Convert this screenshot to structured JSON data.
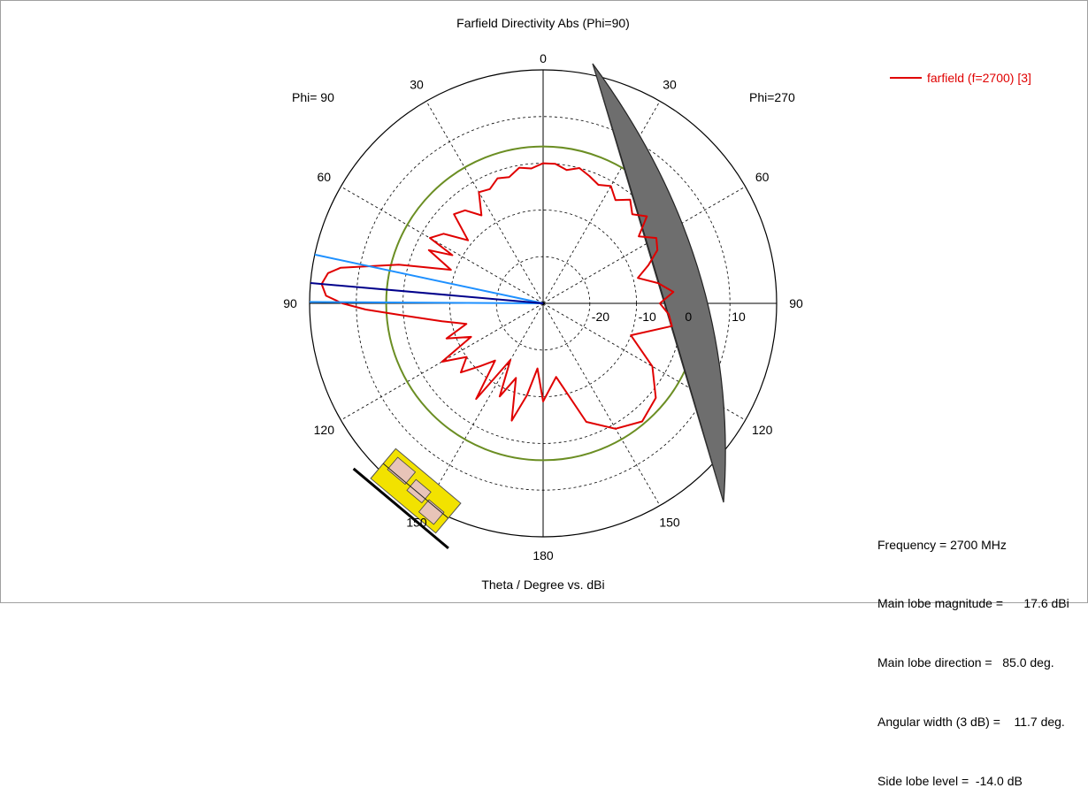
{
  "chart_data": {
    "type": "polar",
    "title": "Farfield Directivity Abs (Phi=90)",
    "xlabel": "Theta / Degree vs. dBi",
    "phi_left_label": "Phi= 90",
    "phi_right_label": "Phi=270",
    "radial_range_dbi": [
      -30,
      20
    ],
    "radial_ticks": [
      "-20",
      "-10",
      "0",
      "10"
    ],
    "angle_labels": {
      "top": "0",
      "right": [
        "30",
        "60",
        "90",
        "120",
        "150"
      ],
      "bottom": "180",
      "left": [
        "30",
        "60",
        "90",
        "120",
        "150"
      ]
    },
    "grid": true,
    "legend_position": "top-right",
    "series": [
      {
        "name": "farfield (f=2700) [3]",
        "color": "#e00000",
        "points_theta_deg_dbi": [
          [
            -180,
            -9
          ],
          [
            -170,
            -14
          ],
          [
            -160,
            -3
          ],
          [
            -150,
            1
          ],
          [
            -140,
            3
          ],
          [
            -130,
            1.5
          ],
          [
            -120,
            -3
          ],
          [
            -110,
            -10
          ],
          [
            -100,
            -2
          ],
          [
            -95,
            -3
          ],
          [
            -90,
            -5
          ],
          [
            -85,
            -2
          ],
          [
            -80,
            -5
          ],
          [
            -75,
            -9
          ],
          [
            -70,
            -6
          ],
          [
            -65,
            -3
          ],
          [
            -60,
            -2
          ],
          [
            -55,
            -5
          ],
          [
            -50,
            -1
          ],
          [
            -45,
            -3
          ],
          [
            -40,
            -1
          ],
          [
            -35,
            -3
          ],
          [
            -30,
            -1
          ],
          [
            -25,
            -2
          ],
          [
            -20,
            -1
          ],
          [
            -15,
            0
          ],
          [
            -10,
            -1
          ],
          [
            -5,
            0
          ],
          [
            0,
            0
          ],
          [
            5,
            -1
          ],
          [
            10,
            -0.5
          ],
          [
            15,
            -2
          ],
          [
            20,
            -1.5
          ],
          [
            25,
            -3
          ],
          [
            30,
            -2.5
          ],
          [
            35,
            -7
          ],
          [
            40,
            -4
          ],
          [
            45,
            -3
          ],
          [
            50,
            -9
          ],
          [
            55,
            -4
          ],
          [
            60,
            -2
          ],
          [
            62,
            -8
          ],
          [
            65,
            -3
          ],
          [
            70,
            -9
          ],
          [
            75,
            2
          ],
          [
            80,
            14
          ],
          [
            82,
            16.5
          ],
          [
            85,
            17.6
          ],
          [
            88,
            16.5
          ],
          [
            90,
            13
          ],
          [
            92,
            8
          ],
          [
            95,
            0
          ],
          [
            100,
            -8
          ],
          [
            105,
            -13
          ],
          [
            110,
            -8
          ],
          [
            115,
            -13
          ],
          [
            120,
            -5
          ],
          [
            125,
            -10
          ],
          [
            130,
            -7
          ],
          [
            135,
            -11
          ],
          [
            140,
            -14
          ],
          [
            145,
            -5
          ],
          [
            150,
            -16
          ],
          [
            155,
            -8
          ],
          [
            160,
            -13
          ],
          [
            165,
            -4
          ],
          [
            170,
            -10
          ],
          [
            175,
            -16
          ],
          [
            180,
            -9
          ]
        ]
      }
    ],
    "main_lobe_direction_deg": 85.0,
    "angular_width_deg": 11.7,
    "reference_circle_dbi": 3.6
  },
  "info": {
    "frequency": "Frequency = 2700 MHz",
    "main_lobe_magnitude": "Main lobe magnitude =      17.6 dBi",
    "main_lobe_direction": "Main lobe direction =   85.0 deg.",
    "angular_width": "Angular width (3 dB) =    11.7 deg.",
    "side_lobe_level": "Side lobe level =  -14.0 dB"
  },
  "colors": {
    "series": "#e00000",
    "main_lobe_line": "#00008b",
    "beamwidth_lines": "#1e90ff",
    "reference_circle": "#6b8e23",
    "reflector_panel": "#6e6e6e",
    "antenna_substrate": "#f2e200",
    "antenna_patch": "#e8c4b8"
  },
  "icons": {
    "reflector": "gray-reflector-panel",
    "antenna": "yellow-antenna-model"
  }
}
